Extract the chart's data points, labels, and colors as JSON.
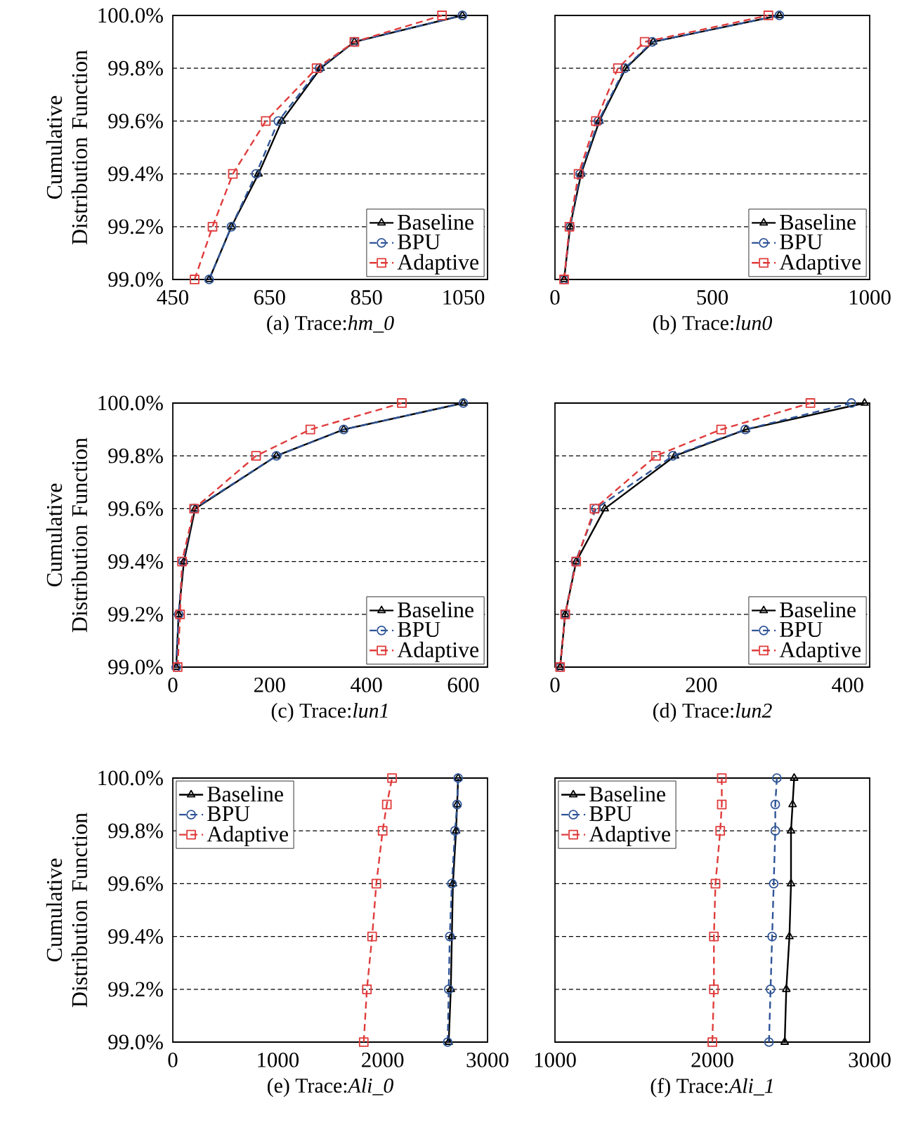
{
  "chart_data": [
    {
      "type": "line",
      "title": "(a) Trace:*hm_0*",
      "ylabel": "Cumulative Distribution Function",
      "xlim": [
        450,
        1100
      ],
      "xticks": [
        450,
        650,
        850,
        1050
      ],
      "ylim": [
        99.0,
        100.0
      ],
      "yticks": [
        {
          "value": 99.0,
          "label": "99.0%"
        },
        {
          "value": 99.2,
          "label": "99.2%"
        },
        {
          "value": 99.4,
          "label": "99.4%"
        },
        {
          "value": 99.6,
          "label": "99.6%"
        },
        {
          "value": 99.8,
          "label": "99.8%"
        },
        {
          "value": 100.0,
          "label": "100.0%"
        }
      ],
      "grid": "y",
      "legend": "bottom right",
      "series": [
        {
          "name": "Baseline",
          "color": "#000000",
          "marker": "triangle",
          "line_style": "solid",
          "x": [
            525,
            571,
            627,
            675,
            755,
            825,
            1048
          ],
          "values": [
            99.0,
            99.2,
            99.4,
            99.6,
            99.8,
            99.9,
            100.0
          ]
        },
        {
          "name": "BPU",
          "color": "#2f5597",
          "marker": "circle",
          "line_style": "dashed",
          "x": [
            525,
            571,
            622,
            668,
            753,
            825,
            1048
          ],
          "values": [
            99.0,
            99.2,
            99.4,
            99.6,
            99.8,
            99.9,
            100.0
          ]
        },
        {
          "name": "Adaptive",
          "color": "#e03c3c",
          "marker": "square",
          "line_style": "dashed",
          "x": [
            495,
            532,
            574,
            642,
            747,
            825,
            1006
          ],
          "values": [
            99.0,
            99.2,
            99.4,
            99.6,
            99.8,
            99.9,
            100.0
          ]
        }
      ]
    },
    {
      "type": "line",
      "title": "(b) Trace:*lun0*",
      "xlim": [
        0,
        1000
      ],
      "xticks": [
        0,
        500,
        1000
      ],
      "ylim": [
        99.0,
        100.0
      ],
      "yticks": [
        {
          "value": 99.0,
          "label": null
        },
        {
          "value": 99.2,
          "label": null
        },
        {
          "value": 99.4,
          "label": null
        },
        {
          "value": 99.6,
          "label": null
        },
        {
          "value": 99.8,
          "label": null
        },
        {
          "value": 100.0,
          "label": null
        }
      ],
      "tick_labels": "x",
      "grid": "y",
      "legend": "bottom right",
      "series": [
        {
          "name": "Baseline",
          "color": "#000000",
          "marker": "triangle",
          "line_style": "solid",
          "x": [
            29,
            48,
            83,
            141,
            225,
            312,
            713
          ],
          "values": [
            99.0,
            99.2,
            99.4,
            99.6,
            99.8,
            99.9,
            100.0
          ]
        },
        {
          "name": "BPU",
          "color": "#2f5597",
          "marker": "circle",
          "line_style": "dashed",
          "x": [
            29,
            48,
            80,
            138,
            222,
            309,
            713
          ],
          "values": [
            99.0,
            99.2,
            99.4,
            99.6,
            99.8,
            99.9,
            100.0
          ]
        },
        {
          "name": "Adaptive",
          "color": "#e03c3c",
          "marker": "square",
          "line_style": "dashed",
          "x": [
            29,
            46,
            75,
            130,
            200,
            285,
            678
          ],
          "values": [
            99.0,
            99.2,
            99.4,
            99.6,
            99.8,
            99.9,
            100.0
          ]
        }
      ]
    },
    {
      "type": "line",
      "title": "(c) Trace:*lun1*",
      "ylabel": "Cumulative Distribution Function",
      "xlim": [
        0,
        650
      ],
      "xticks": [
        0,
        200,
        400,
        600
      ],
      "ylim": [
        99.0,
        100.0
      ],
      "yticks": [
        {
          "value": 99.0,
          "label": "99.0%"
        },
        {
          "value": 99.2,
          "label": "99.2%"
        },
        {
          "value": 99.4,
          "label": "99.4%"
        },
        {
          "value": 99.6,
          "label": "99.6%"
        },
        {
          "value": 99.8,
          "label": "99.8%"
        },
        {
          "value": 100.0,
          "label": "100.0%"
        }
      ],
      "grid": "y",
      "legend": "bottom right",
      "series": [
        {
          "name": "Baseline",
          "color": "#000000",
          "marker": "triangle",
          "line_style": "solid",
          "x": [
            7,
            12,
            23,
            46,
            214,
            353,
            600
          ],
          "values": [
            99.0,
            99.2,
            99.4,
            99.6,
            99.8,
            99.9,
            100.0
          ]
        },
        {
          "name": "BPU",
          "color": "#2f5597",
          "marker": "circle",
          "line_style": "dashed",
          "x": [
            7,
            12,
            21,
            44,
            214,
            353,
            600
          ],
          "values": [
            99.0,
            99.2,
            99.4,
            99.6,
            99.8,
            99.9,
            100.0
          ]
        },
        {
          "name": "Adaptive",
          "color": "#e03c3c",
          "marker": "square",
          "line_style": "dashed",
          "x": [
            10,
            15,
            19,
            44,
            172,
            284,
            473
          ],
          "values": [
            99.0,
            99.2,
            99.4,
            99.6,
            99.8,
            99.9,
            100.0
          ]
        }
      ]
    },
    {
      "type": "line",
      "title": "(d) Trace:*lun2*",
      "xlim": [
        0,
        430
      ],
      "xticks": [
        0,
        200,
        400
      ],
      "ylim": [
        99.0,
        100.0
      ],
      "yticks": [
        {
          "value": 99.0,
          "label": null
        },
        {
          "value": 99.2,
          "label": null
        },
        {
          "value": 99.4,
          "label": null
        },
        {
          "value": 99.6,
          "label": null
        },
        {
          "value": 99.8,
          "label": null
        },
        {
          "value": 100.0,
          "label": null
        }
      ],
      "tick_labels": "x",
      "grid": "y",
      "legend": "bottom right",
      "series": [
        {
          "name": "Baseline",
          "color": "#000000",
          "marker": "triangle",
          "line_style": "solid",
          "x": [
            7,
            14,
            29,
            68,
            164,
            261,
            423
          ],
          "values": [
            99.0,
            99.2,
            99.4,
            99.6,
            99.8,
            99.9,
            100.0
          ]
        },
        {
          "name": "BPU",
          "color": "#2f5597",
          "marker": "circle",
          "line_style": "dashed",
          "x": [
            7,
            14,
            28,
            56,
            161,
            260,
            405
          ],
          "values": [
            99.0,
            99.2,
            99.4,
            99.6,
            99.8,
            99.9,
            100.0
          ]
        },
        {
          "name": "Adaptive",
          "color": "#e03c3c",
          "marker": "square",
          "line_style": "dashed",
          "x": [
            7,
            14,
            29,
            54,
            138,
            227,
            349
          ],
          "values": [
            99.0,
            99.2,
            99.4,
            99.6,
            99.8,
            99.9,
            100.0
          ]
        }
      ]
    },
    {
      "type": "line",
      "title": "(e) Trace:*Ali_0*",
      "ylabel": "Cumulative Distribution Function",
      "xlim": [
        0,
        3000
      ],
      "xticks": [
        0,
        1000,
        2000,
        3000
      ],
      "ylim": [
        99.0,
        100.0
      ],
      "yticks": [
        {
          "value": 99.0,
          "label": "99.0%"
        },
        {
          "value": 99.2,
          "label": "99.2%"
        },
        {
          "value": 99.4,
          "label": "99.4%"
        },
        {
          "value": 99.6,
          "label": "99.6%"
        },
        {
          "value": 99.8,
          "label": "99.8%"
        },
        {
          "value": 100.0,
          "label": "100.0%"
        }
      ],
      "grid": "y",
      "legend": "top left",
      "series": [
        {
          "name": "Baseline",
          "color": "#000000",
          "marker": "triangle",
          "line_style": "solid",
          "x": [
            2630,
            2650,
            2660,
            2670,
            2700,
            2710,
            2720
          ],
          "values": [
            99.0,
            99.2,
            99.4,
            99.6,
            99.8,
            99.9,
            100.0
          ]
        },
        {
          "name": "BPU",
          "color": "#2f5597",
          "marker": "circle",
          "line_style": "dashed",
          "x": [
            2620,
            2630,
            2640,
            2660,
            2690,
            2710,
            2720
          ],
          "values": [
            99.0,
            99.2,
            99.4,
            99.6,
            99.8,
            99.9,
            100.0
          ]
        },
        {
          "name": "Adaptive",
          "color": "#e03c3c",
          "marker": "square",
          "line_style": "dashed",
          "x": [
            1820,
            1850,
            1900,
            1940,
            2000,
            2040,
            2090
          ],
          "values": [
            99.0,
            99.2,
            99.4,
            99.6,
            99.8,
            99.9,
            100.0
          ]
        }
      ]
    },
    {
      "type": "line",
      "title": "(f) Trace:*Ali_1*",
      "xlim": [
        1000,
        3000
      ],
      "xticks": [
        1000,
        2000,
        3000
      ],
      "ylim": [
        99.0,
        100.0
      ],
      "yticks": [
        {
          "value": 99.0,
          "label": null
        },
        {
          "value": 99.2,
          "label": null
        },
        {
          "value": 99.4,
          "label": null
        },
        {
          "value": 99.6,
          "label": null
        },
        {
          "value": 99.8,
          "label": null
        },
        {
          "value": 100.0,
          "label": null
        }
      ],
      "tick_labels": "x",
      "grid": "y",
      "legend": "top left",
      "series": [
        {
          "name": "Baseline",
          "color": "#000000",
          "marker": "triangle",
          "line_style": "solid",
          "x": [
            2460,
            2470,
            2490,
            2500,
            2500,
            2510,
            2520
          ],
          "values": [
            99.0,
            99.2,
            99.4,
            99.6,
            99.8,
            99.9,
            100.0
          ]
        },
        {
          "name": "BPU",
          "color": "#2f5597",
          "marker": "circle",
          "line_style": "dashed",
          "x": [
            2360,
            2370,
            2380,
            2390,
            2400,
            2400,
            2410
          ],
          "values": [
            99.0,
            99.2,
            99.4,
            99.6,
            99.8,
            99.9,
            100.0
          ]
        },
        {
          "name": "Adaptive",
          "color": "#e03c3c",
          "marker": "square",
          "line_style": "dashed",
          "x": [
            2000,
            2010,
            2010,
            2020,
            2050,
            2060,
            2060
          ],
          "values": [
            99.0,
            99.2,
            99.4,
            99.6,
            99.8,
            99.9,
            100.0
          ]
        }
      ]
    }
  ]
}
